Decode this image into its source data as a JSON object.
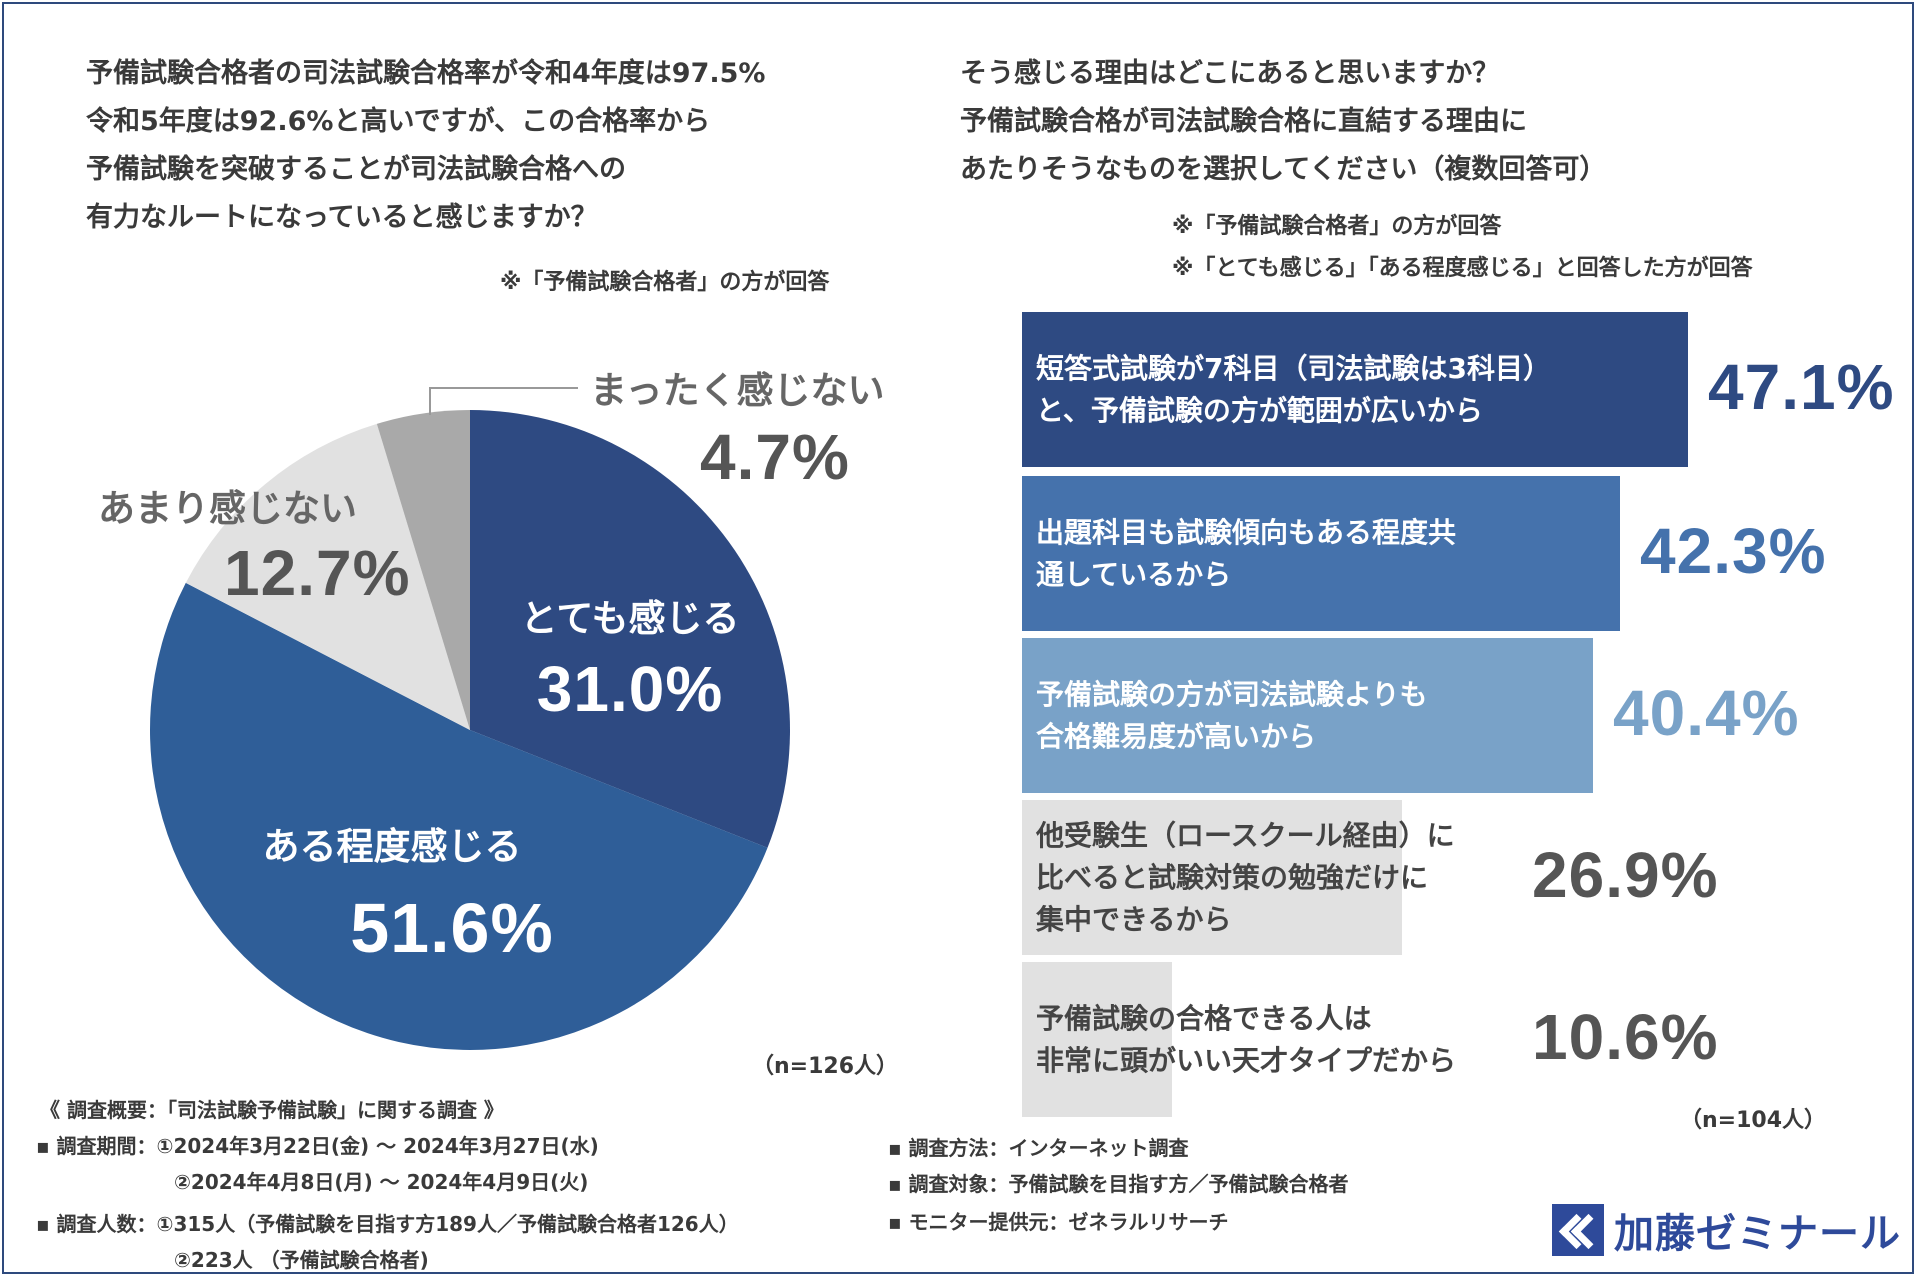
{
  "left": {
    "question": [
      "予備試験合格者の司法試験合格率が令和4年度は97.5%",
      "令和5年度は92.6%と高いですが、この合格率から",
      "予備試験を突破することが司法試験合格への",
      "有力なルートになっていると感じますか？"
    ],
    "note": "※「予備試験合格者」の方が回答",
    "n_label": "（n=126人）"
  },
  "right": {
    "question": [
      "そう感じる理由はどこにあると思いますか？",
      "予備試験合格が司法試験合格に直結する理由に",
      "あたりそうなものを選択してください（複数回答可）"
    ],
    "notes": [
      "※「予備試験合格者」の方が回答",
      "※「とても感じる」「ある程度感じる」と回答した方が回答"
    ],
    "n_label": "（n=104人）"
  },
  "chart_data": [
    {
      "type": "pie",
      "slices": [
        {
          "label": "とても感じる",
          "value": 31.0,
          "value_label": "31.0%",
          "color": "#2e4a82"
        },
        {
          "label": "ある程度感じる",
          "value": 51.6,
          "value_label": "51.6%",
          "color": "#2f5e98"
        },
        {
          "label": "あまり感じない",
          "value": 12.7,
          "value_label": "12.7%",
          "color": "#e1e1e1"
        },
        {
          "label": "まったく感じない",
          "value": 4.7,
          "value_label": "4.7%",
          "color": "#a9a9a9"
        }
      ]
    },
    {
      "type": "bar",
      "orientation": "horizontal",
      "xlim": [
        0,
        47.1
      ],
      "bars": [
        {
          "label": [
            "短答式試験が7科目（司法試験は3科目）",
            "と、予備試験の方が範囲が広いから"
          ],
          "value": 47.1,
          "value_label": "47.1%",
          "color": "#2e4a82",
          "text_color": "#ffffff",
          "value_color": "#2e4a82"
        },
        {
          "label": [
            "出題科目も試験傾向もある程度共",
            "通しているから"
          ],
          "value": 42.3,
          "value_label": "42.3%",
          "color": "#4572ac",
          "text_color": "#ffffff",
          "value_color": "#4572ac"
        },
        {
          "label": [
            "予備試験の方が司法試験よりも",
            "合格難易度が高いから"
          ],
          "value": 40.4,
          "value_label": "40.4%",
          "color": "#79a2c8",
          "text_color": "#ffffff",
          "value_color": "#79a2c8"
        },
        {
          "label": [
            "他受験生（ロースクール経由）に",
            "比べると試験対策の勉強だけに",
            "集中できるから"
          ],
          "value": 26.9,
          "value_label": "26.9%",
          "color": "#e1e1e1",
          "text_color": "#444444",
          "value_color": "#555555"
        },
        {
          "label": [
            "予備試験の合格できる人は",
            "非常に頭がいい天才タイプだから"
          ],
          "value": 10.6,
          "value_label": "10.6%",
          "color": "#e1e1e1",
          "text_color": "#444444",
          "value_color": "#555555"
        }
      ]
    }
  ],
  "footer": {
    "title": "《 調査概要：「司法試験予備試験」に関する調査 》",
    "period_1": "▪ 調査期間：①2024年3月22日(金) 〜 2024年3月27日(水)",
    "period_2": "②2024年4月8日(月) 〜 2024年4月9日(火)",
    "people_1": "▪ 調査人数：①315人（予備試験を目指す方189人／予備試験合格者126人）",
    "people_2": "②223人 （予備試験合格者)",
    "method": "▪ 調査方法：インターネット調査",
    "target": "▪ 調査対象：予備試験を目指す方／予備試験合格者",
    "monitor": "▪ モニター提供元：ゼネラルリサーチ"
  },
  "logo": {
    "text": "加藤ゼミナール",
    "icon": "double-chevron-icon",
    "color": "#2e4a9a"
  }
}
